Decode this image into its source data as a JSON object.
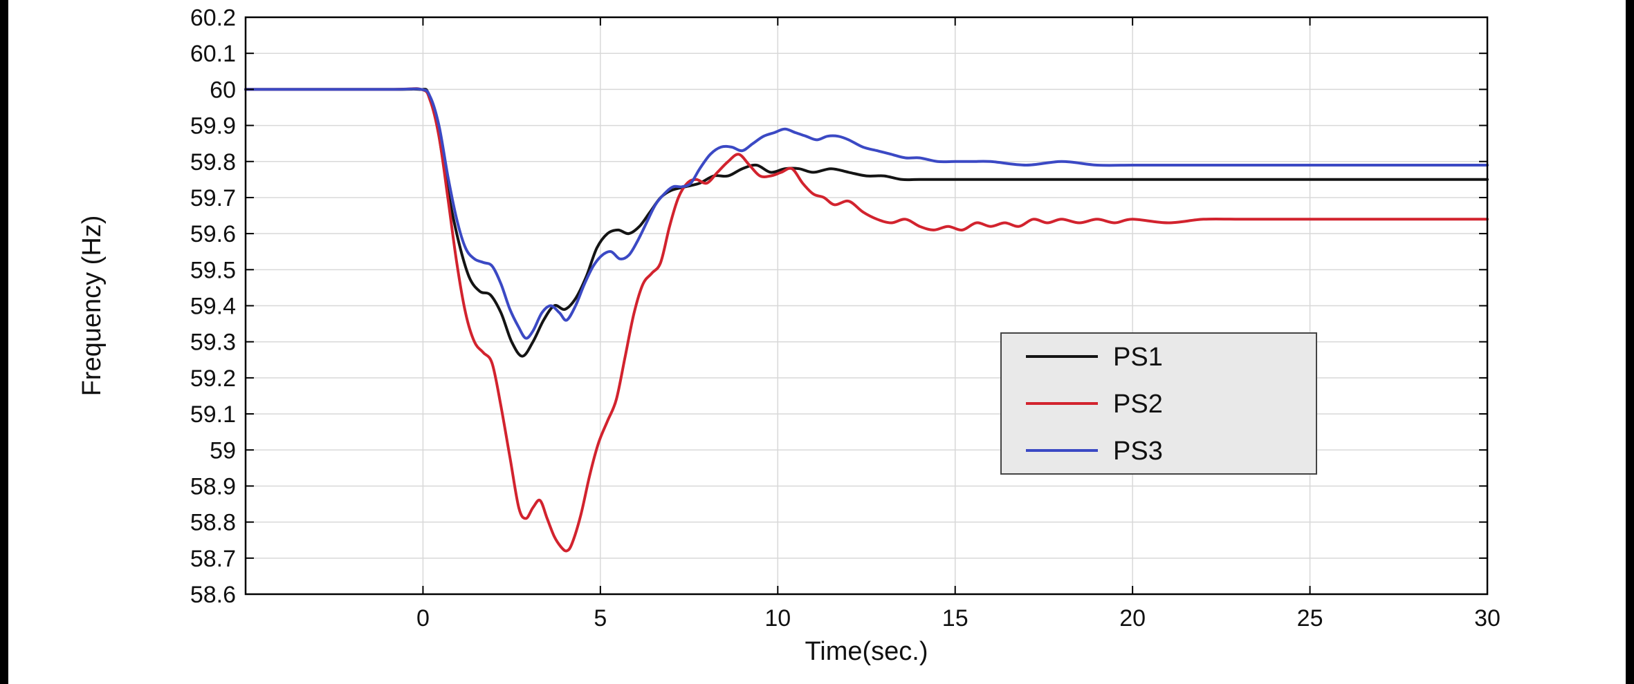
{
  "page": {
    "background": "#ffffff",
    "edge_bar_color": "#000000"
  },
  "chart_data": {
    "type": "line",
    "title": "",
    "xlabel": "Time(sec.)",
    "ylabel": "Frequency (Hz)",
    "xlim": [
      -5,
      30
    ],
    "ylim": [
      58.6,
      60.2
    ],
    "xticks": [
      0,
      5,
      10,
      15,
      20,
      25,
      30
    ],
    "ytick_step": 0.1,
    "grid": true,
    "grid_color": "#d8d8d8",
    "frame_color": "#000000",
    "legend": {
      "position": "middle-right",
      "background": "#e9e9e9",
      "border": "#444444",
      "entries": [
        "PS1",
        "PS2",
        "PS3"
      ]
    },
    "series": [
      {
        "name": "PS1",
        "color": "#141414",
        "points": [
          [
            -5,
            60
          ],
          [
            -1,
            60
          ],
          [
            -0.1,
            60
          ],
          [
            0.15,
            59.99
          ],
          [
            0.4,
            59.9
          ],
          [
            0.7,
            59.72
          ],
          [
            1.0,
            59.58
          ],
          [
            1.3,
            59.48
          ],
          [
            1.6,
            59.44
          ],
          [
            1.9,
            59.43
          ],
          [
            2.2,
            59.38
          ],
          [
            2.5,
            59.3
          ],
          [
            2.8,
            59.26
          ],
          [
            3.1,
            59.3
          ],
          [
            3.4,
            59.36
          ],
          [
            3.7,
            59.4
          ],
          [
            4.0,
            59.39
          ],
          [
            4.3,
            59.42
          ],
          [
            4.6,
            59.48
          ],
          [
            4.9,
            59.56
          ],
          [
            5.2,
            59.6
          ],
          [
            5.5,
            59.61
          ],
          [
            5.8,
            59.6
          ],
          [
            6.1,
            59.62
          ],
          [
            6.4,
            59.66
          ],
          [
            6.7,
            59.7
          ],
          [
            7.0,
            59.72
          ],
          [
            7.4,
            59.73
          ],
          [
            7.8,
            59.74
          ],
          [
            8.2,
            59.76
          ],
          [
            8.6,
            59.76
          ],
          [
            9.0,
            59.78
          ],
          [
            9.4,
            59.79
          ],
          [
            9.8,
            59.77
          ],
          [
            10.2,
            59.78
          ],
          [
            10.6,
            59.78
          ],
          [
            11.0,
            59.77
          ],
          [
            11.5,
            59.78
          ],
          [
            12.0,
            59.77
          ],
          [
            12.5,
            59.76
          ],
          [
            13.0,
            59.76
          ],
          [
            13.5,
            59.75
          ],
          [
            14.0,
            59.75
          ],
          [
            15,
            59.75
          ],
          [
            16,
            59.75
          ],
          [
            17,
            59.75
          ],
          [
            18,
            59.75
          ],
          [
            19,
            59.75
          ],
          [
            20,
            59.75
          ],
          [
            21,
            59.75
          ],
          [
            22,
            59.75
          ],
          [
            23,
            59.75
          ],
          [
            24,
            59.75
          ],
          [
            25,
            59.75
          ],
          [
            26,
            59.75
          ],
          [
            27,
            59.75
          ],
          [
            28,
            59.75
          ],
          [
            29,
            59.75
          ],
          [
            30,
            59.75
          ]
        ]
      },
      {
        "name": "PS2",
        "color": "#d2232e",
        "points": [
          [
            -5,
            60
          ],
          [
            -1,
            60
          ],
          [
            -0.05,
            60
          ],
          [
            0.2,
            59.97
          ],
          [
            0.45,
            59.87
          ],
          [
            0.7,
            59.7
          ],
          [
            0.95,
            59.52
          ],
          [
            1.2,
            59.38
          ],
          [
            1.45,
            59.3
          ],
          [
            1.7,
            59.27
          ],
          [
            1.95,
            59.24
          ],
          [
            2.2,
            59.12
          ],
          [
            2.45,
            58.98
          ],
          [
            2.7,
            58.84
          ],
          [
            2.9,
            58.81
          ],
          [
            3.1,
            58.84
          ],
          [
            3.3,
            58.86
          ],
          [
            3.5,
            58.81
          ],
          [
            3.7,
            58.76
          ],
          [
            3.9,
            58.73
          ],
          [
            4.05,
            58.72
          ],
          [
            4.2,
            58.74
          ],
          [
            4.45,
            58.82
          ],
          [
            4.7,
            58.93
          ],
          [
            4.95,
            59.02
          ],
          [
            5.2,
            59.08
          ],
          [
            5.45,
            59.14
          ],
          [
            5.7,
            59.26
          ],
          [
            5.95,
            59.38
          ],
          [
            6.2,
            59.46
          ],
          [
            6.45,
            59.49
          ],
          [
            6.7,
            59.52
          ],
          [
            6.95,
            59.62
          ],
          [
            7.2,
            59.7
          ],
          [
            7.45,
            59.74
          ],
          [
            7.7,
            59.75
          ],
          [
            8.0,
            59.74
          ],
          [
            8.3,
            59.77
          ],
          [
            8.6,
            59.8
          ],
          [
            8.9,
            59.82
          ],
          [
            9.2,
            59.79
          ],
          [
            9.5,
            59.76
          ],
          [
            9.8,
            59.76
          ],
          [
            10.1,
            59.77
          ],
          [
            10.4,
            59.78
          ],
          [
            10.7,
            59.74
          ],
          [
            11.0,
            59.71
          ],
          [
            11.3,
            59.7
          ],
          [
            11.6,
            59.68
          ],
          [
            12.0,
            59.69
          ],
          [
            12.4,
            59.66
          ],
          [
            12.8,
            59.64
          ],
          [
            13.2,
            59.63
          ],
          [
            13.6,
            59.64
          ],
          [
            14.0,
            59.62
          ],
          [
            14.4,
            59.61
          ],
          [
            14.8,
            59.62
          ],
          [
            15.2,
            59.61
          ],
          [
            15.6,
            59.63
          ],
          [
            16.0,
            59.62
          ],
          [
            16.4,
            59.63
          ],
          [
            16.8,
            59.62
          ],
          [
            17.2,
            59.64
          ],
          [
            17.6,
            59.63
          ],
          [
            18.0,
            59.64
          ],
          [
            18.5,
            59.63
          ],
          [
            19.0,
            59.64
          ],
          [
            19.5,
            59.63
          ],
          [
            20,
            59.64
          ],
          [
            21,
            59.63
          ],
          [
            22,
            59.64
          ],
          [
            23,
            59.64
          ],
          [
            24,
            59.64
          ],
          [
            25,
            59.64
          ],
          [
            26,
            59.64
          ],
          [
            27,
            59.64
          ],
          [
            28,
            59.64
          ],
          [
            29,
            59.64
          ],
          [
            30,
            59.64
          ]
        ]
      },
      {
        "name": "PS3",
        "color": "#3b49c4",
        "points": [
          [
            -5,
            60
          ],
          [
            -1,
            60
          ],
          [
            -0.05,
            60
          ],
          [
            0.2,
            59.98
          ],
          [
            0.45,
            59.9
          ],
          [
            0.7,
            59.76
          ],
          [
            0.95,
            59.64
          ],
          [
            1.2,
            59.56
          ],
          [
            1.45,
            59.53
          ],
          [
            1.7,
            59.52
          ],
          [
            1.95,
            59.51
          ],
          [
            2.2,
            59.46
          ],
          [
            2.45,
            59.39
          ],
          [
            2.7,
            59.34
          ],
          [
            2.9,
            59.31
          ],
          [
            3.1,
            59.33
          ],
          [
            3.35,
            59.38
          ],
          [
            3.6,
            59.4
          ],
          [
            3.85,
            59.38
          ],
          [
            4.05,
            59.36
          ],
          [
            4.3,
            59.4
          ],
          [
            4.55,
            59.46
          ],
          [
            4.8,
            59.51
          ],
          [
            5.05,
            59.54
          ],
          [
            5.3,
            59.55
          ],
          [
            5.55,
            59.53
          ],
          [
            5.8,
            59.54
          ],
          [
            6.05,
            59.58
          ],
          [
            6.3,
            59.63
          ],
          [
            6.55,
            59.68
          ],
          [
            6.8,
            59.71
          ],
          [
            7.05,
            59.73
          ],
          [
            7.3,
            59.73
          ],
          [
            7.55,
            59.74
          ],
          [
            7.8,
            59.78
          ],
          [
            8.1,
            59.82
          ],
          [
            8.4,
            59.84
          ],
          [
            8.7,
            59.84
          ],
          [
            9.0,
            59.83
          ],
          [
            9.3,
            59.85
          ],
          [
            9.6,
            59.87
          ],
          [
            9.9,
            59.88
          ],
          [
            10.2,
            59.89
          ],
          [
            10.5,
            59.88
          ],
          [
            10.8,
            59.87
          ],
          [
            11.1,
            59.86
          ],
          [
            11.4,
            59.87
          ],
          [
            11.7,
            59.87
          ],
          [
            12.0,
            59.86
          ],
          [
            12.4,
            59.84
          ],
          [
            12.8,
            59.83
          ],
          [
            13.2,
            59.82
          ],
          [
            13.6,
            59.81
          ],
          [
            14.0,
            59.81
          ],
          [
            14.5,
            59.8
          ],
          [
            15.0,
            59.8
          ],
          [
            15.5,
            59.8
          ],
          [
            16,
            59.8
          ],
          [
            17,
            59.79
          ],
          [
            18,
            59.8
          ],
          [
            19,
            59.79
          ],
          [
            20,
            59.79
          ],
          [
            21,
            59.79
          ],
          [
            22,
            59.79
          ],
          [
            23,
            59.79
          ],
          [
            24,
            59.79
          ],
          [
            25,
            59.79
          ],
          [
            26,
            59.79
          ],
          [
            27,
            59.79
          ],
          [
            28,
            59.79
          ],
          [
            29,
            59.79
          ],
          [
            30,
            59.79
          ]
        ]
      }
    ]
  }
}
